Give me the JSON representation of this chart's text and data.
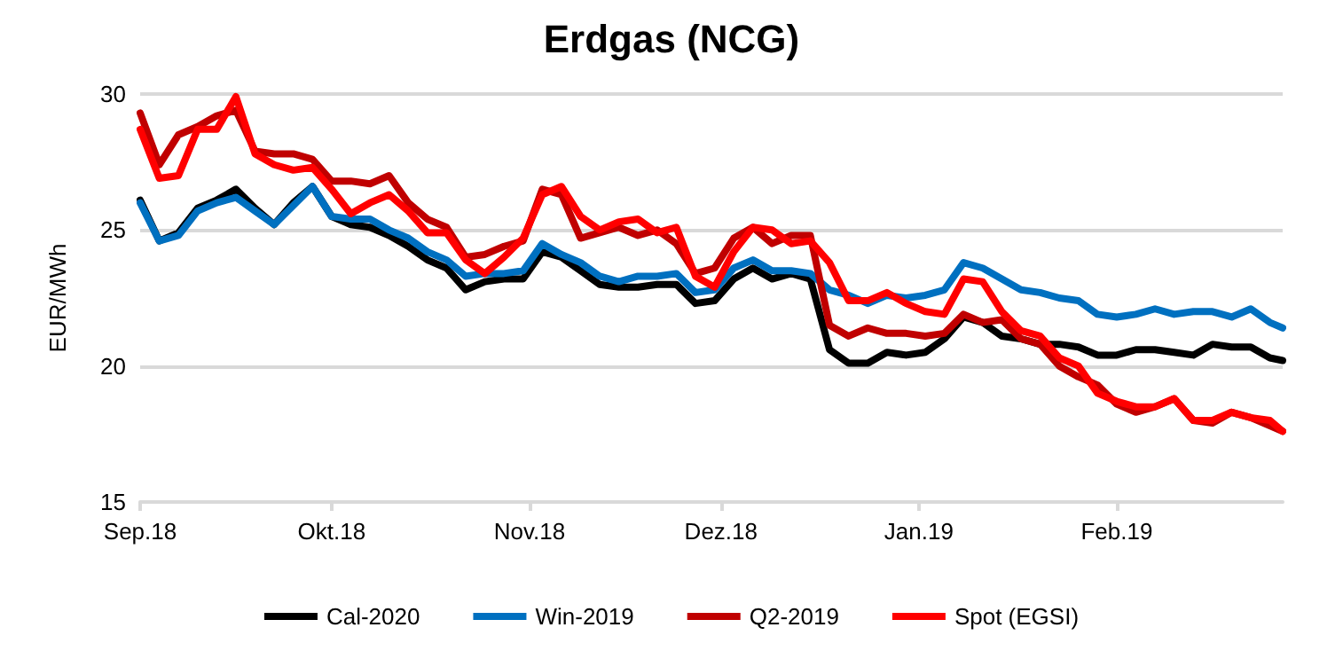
{
  "chart_data": {
    "type": "line",
    "title": "Erdgas (NCG)",
    "ylabel": "EUR/MWh",
    "x": [
      "2018-09-01",
      "2018-09-04",
      "2018-09-07",
      "2018-09-10",
      "2018-09-13",
      "2018-09-16",
      "2018-09-19",
      "2018-09-22",
      "2018-09-25",
      "2018-09-28",
      "2018-10-01",
      "2018-10-04",
      "2018-10-07",
      "2018-10-10",
      "2018-10-13",
      "2018-10-16",
      "2018-10-19",
      "2018-10-22",
      "2018-10-25",
      "2018-10-28",
      "2018-10-31",
      "2018-11-03",
      "2018-11-06",
      "2018-11-09",
      "2018-11-12",
      "2018-11-15",
      "2018-11-18",
      "2018-11-21",
      "2018-11-24",
      "2018-11-27",
      "2018-11-30",
      "2018-12-03",
      "2018-12-06",
      "2018-12-09",
      "2018-12-12",
      "2018-12-15",
      "2018-12-18",
      "2018-12-21",
      "2018-12-24",
      "2018-12-27",
      "2018-12-30",
      "2019-01-02",
      "2019-01-05",
      "2019-01-08",
      "2019-01-11",
      "2019-01-14",
      "2019-01-17",
      "2019-01-20",
      "2019-01-23",
      "2019-01-26",
      "2019-01-29",
      "2019-02-01",
      "2019-02-04",
      "2019-02-07",
      "2019-02-10",
      "2019-02-13",
      "2019-02-16",
      "2019-02-19",
      "2019-02-22",
      "2019-02-25",
      "2019-02-27"
    ],
    "series": [
      {
        "name": "Cal-2020",
        "color": "#000000",
        "values": [
          26.1,
          24.6,
          24.9,
          25.8,
          26.1,
          26.5,
          25.8,
          25.2,
          26.0,
          26.6,
          25.5,
          25.2,
          25.1,
          24.8,
          24.4,
          23.9,
          23.6,
          22.8,
          23.1,
          23.2,
          23.2,
          24.2,
          24.0,
          23.5,
          23.0,
          22.9,
          22.9,
          23.0,
          23.0,
          22.3,
          22.4,
          23.2,
          23.6,
          23.2,
          23.4,
          23.2,
          20.6,
          20.1,
          20.1,
          20.5,
          20.4,
          20.5,
          21.0,
          21.8,
          21.6,
          21.1,
          21.0,
          20.8,
          20.8,
          20.7,
          20.4,
          20.4,
          20.6,
          20.6,
          20.5,
          20.4,
          20.8,
          20.7,
          20.7,
          20.3,
          20.2
        ]
      },
      {
        "name": "Win-2019",
        "color": "#0070c0",
        "values": [
          26.0,
          24.6,
          24.8,
          25.7,
          26.0,
          26.2,
          25.7,
          25.2,
          25.9,
          26.6,
          25.5,
          25.4,
          25.4,
          25.0,
          24.7,
          24.2,
          23.9,
          23.3,
          23.4,
          23.4,
          23.5,
          24.5,
          24.1,
          23.8,
          23.3,
          23.1,
          23.3,
          23.3,
          23.4,
          22.7,
          22.8,
          23.6,
          23.9,
          23.5,
          23.5,
          23.4,
          22.8,
          22.6,
          22.3,
          22.6,
          22.5,
          22.6,
          22.8,
          23.8,
          23.6,
          23.2,
          22.8,
          22.7,
          22.5,
          22.4,
          21.9,
          21.8,
          21.9,
          22.1,
          21.9,
          22.0,
          22.0,
          21.8,
          22.1,
          21.6,
          21.4
        ]
      },
      {
        "name": "Q2-2019",
        "color": "#c00000",
        "values": [
          29.3,
          27.4,
          28.5,
          28.8,
          29.2,
          29.4,
          27.9,
          27.8,
          27.8,
          27.6,
          26.8,
          26.8,
          26.7,
          27.0,
          26.0,
          25.4,
          25.1,
          24.0,
          24.1,
          24.4,
          24.6,
          26.5,
          26.3,
          24.7,
          24.9,
          25.1,
          24.8,
          25.0,
          24.5,
          23.4,
          23.6,
          24.7,
          25.1,
          24.5,
          24.8,
          24.8,
          21.5,
          21.1,
          21.4,
          21.2,
          21.2,
          21.1,
          21.2,
          21.9,
          21.6,
          21.7,
          21.0,
          20.8,
          20.0,
          19.6,
          19.3,
          18.6,
          18.3,
          18.5,
          18.8,
          18.0,
          17.9,
          18.3,
          18.1,
          17.8,
          17.6
        ]
      },
      {
        "name": "Spot (EGSI)",
        "color": "#ff0000",
        "values": [
          28.7,
          26.9,
          27.0,
          28.7,
          28.7,
          29.9,
          27.8,
          27.4,
          27.2,
          27.3,
          26.5,
          25.6,
          26.0,
          26.3,
          25.7,
          24.9,
          24.9,
          23.9,
          23.4,
          24.0,
          24.7,
          26.3,
          26.6,
          25.5,
          25.0,
          25.3,
          25.4,
          24.9,
          25.1,
          23.3,
          22.9,
          24.2,
          25.1,
          25.0,
          24.5,
          24.6,
          23.8,
          22.4,
          22.4,
          22.7,
          22.3,
          22.0,
          21.9,
          23.2,
          23.1,
          22.0,
          21.3,
          21.1,
          20.3,
          20.0,
          19.0,
          18.7,
          18.5,
          18.5,
          18.8,
          18.0,
          18.0,
          18.3,
          18.1,
          18.0,
          17.6
        ]
      }
    ],
    "xlim": [
      "2018-09-01",
      "2019-02-27"
    ],
    "xticks": [
      {
        "value": "2018-09-01",
        "label": "Sep.18"
      },
      {
        "value": "2018-10-01",
        "label": "Okt.18"
      },
      {
        "value": "2018-11-01",
        "label": "Nov.18"
      },
      {
        "value": "2018-12-01",
        "label": "Dez.18"
      },
      {
        "value": "2019-01-01",
        "label": "Jan.19"
      },
      {
        "value": "2019-02-01",
        "label": "Feb.19"
      }
    ],
    "ylim": [
      15,
      30
    ],
    "yticks": [
      15,
      20,
      25,
      30
    ],
    "grid": "y",
    "legend": "bottom",
    "marker": "none",
    "line_style": "solid"
  }
}
